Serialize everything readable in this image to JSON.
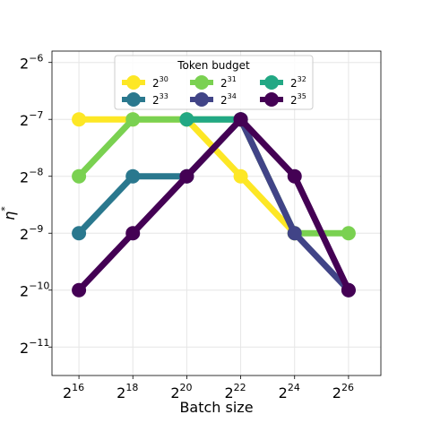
{
  "chart_data": {
    "type": "line",
    "title": "",
    "xlabel": "Batch size",
    "ylabel_base": "η",
    "ylabel_sup": "*",
    "x_scale": "log2",
    "y_scale": "log2",
    "x_exponents": [
      16,
      18,
      20,
      22,
      24,
      26
    ],
    "xlim_exponents": [
      15,
      27.2
    ],
    "ylim_exponents": [
      -11.5,
      -5.8
    ],
    "xticks": [
      {
        "base": "2",
        "exp": "16",
        "value": 65536
      },
      {
        "base": "2",
        "exp": "18",
        "value": 262144
      },
      {
        "base": "2",
        "exp": "20",
        "value": 1048576
      },
      {
        "base": "2",
        "exp": "22",
        "value": 4194304
      },
      {
        "base": "2",
        "exp": "24",
        "value": 16777216
      },
      {
        "base": "2",
        "exp": "26",
        "value": 67108864
      }
    ],
    "yticks": [
      {
        "base": "2",
        "exp": "−6",
        "e": -6
      },
      {
        "base": "2",
        "exp": "−7",
        "e": -7
      },
      {
        "base": "2",
        "exp": "−8",
        "e": -8
      },
      {
        "base": "2",
        "exp": "−9",
        "e": -9
      },
      {
        "base": "2",
        "exp": "−10",
        "e": -10
      },
      {
        "base": "2",
        "exp": "−11",
        "e": -11
      }
    ],
    "grid": true,
    "legend": {
      "title": "Token budget",
      "placement": "top-center",
      "columns": 3
    },
    "series": [
      {
        "base": "2",
        "exp": "30",
        "color": "#fde725",
        "x_exp": [
          16,
          18,
          20,
          22,
          24
        ],
        "y_exp": [
          -7,
          -7,
          -7,
          -8,
          -9
        ]
      },
      {
        "base": "2",
        "exp": "31",
        "color": "#7ad151",
        "x_exp": [
          16,
          18,
          20,
          22,
          24,
          26
        ],
        "y_exp": [
          -8,
          -7,
          -7,
          -7,
          -9,
          -9
        ]
      },
      {
        "base": "2",
        "exp": "32",
        "color": "#22a884",
        "x_exp": [
          20,
          22
        ],
        "y_exp": [
          -7,
          -7
        ]
      },
      {
        "base": "2",
        "exp": "33",
        "color": "#2a788e",
        "x_exp": [
          16,
          18,
          20,
          22
        ],
        "y_exp": [
          -9,
          -8,
          -8,
          -7
        ]
      },
      {
        "base": "2",
        "exp": "34",
        "color": "#414487",
        "x_exp": [
          22,
          24,
          26
        ],
        "y_exp": [
          -7,
          -9,
          -10
        ]
      },
      {
        "base": "2",
        "exp": "35",
        "color": "#440154",
        "x_exp": [
          16,
          18,
          20,
          22,
          24,
          26
        ],
        "y_exp": [
          -10,
          -9,
          -8,
          -7,
          -8,
          -10
        ]
      }
    ]
  }
}
